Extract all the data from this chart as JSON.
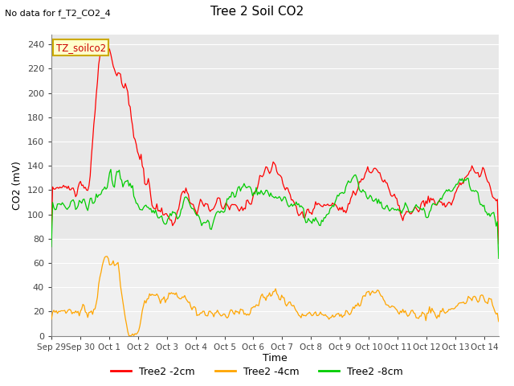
{
  "title": "Tree 2 Soil CO2",
  "subtitle": "No data for f_T2_CO2_4",
  "ylabel": "CO2 (mV)",
  "xlabel": "Time",
  "legend_label": "TZ_soilco2",
  "yticks": [
    0,
    20,
    40,
    60,
    80,
    100,
    120,
    140,
    160,
    180,
    200,
    220,
    240
  ],
  "ylim": [
    0,
    248
  ],
  "xlim_days": 15.5,
  "xtick_labels": [
    "Sep 29",
    "Sep 30",
    "Oct 1",
    "Oct 2",
    "Oct 3",
    "Oct 4",
    "Oct 5",
    "Oct 6",
    "Oct 7",
    "Oct 8",
    "Oct 9",
    "Oct 10",
    "Oct 11",
    "Oct 12",
    "Oct 13",
    "Oct 14"
  ],
  "color_2cm": "#ff0000",
  "color_4cm": "#ffa500",
  "color_8cm": "#00cc00",
  "legend_entries": [
    "Tree2 -2cm",
    "Tree2 -4cm",
    "Tree2 -8cm"
  ],
  "bg_upper": "#e8e8e8",
  "bg_lower": "#f0f0f0",
  "grid_color": "#ffffff",
  "upper_threshold": 80
}
